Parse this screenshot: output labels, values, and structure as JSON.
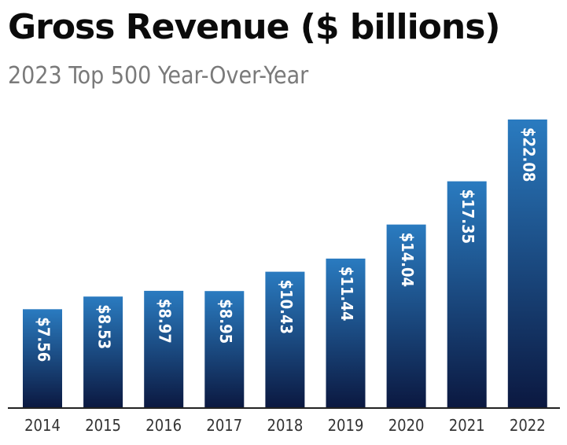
{
  "chart_data": {
    "type": "bar",
    "title": "Gross Revenue ($ billions)",
    "subtitle": "2023 Top 500 Year-Over-Year",
    "categories": [
      "2014",
      "2015",
      "2016",
      "2017",
      "2018",
      "2019",
      "2020",
      "2021",
      "2022"
    ],
    "values": [
      7.56,
      8.53,
      8.97,
      8.95,
      10.43,
      11.44,
      14.04,
      17.35,
      22.08
    ],
    "data_labels": [
      "$7.56",
      "$8.53",
      "$8.97",
      "$8.95",
      "$10.43",
      "$11.44",
      "$14.04",
      "$17.35",
      "$22.08"
    ],
    "xlabel": "",
    "ylabel": "",
    "ylim": [
      0,
      22.08
    ],
    "grid": false,
    "legend": "none",
    "colors": {
      "bar_top": "#2a7bc0",
      "bar_bottom": "#0b1840",
      "baseline": "#222222",
      "title": "#0b0b0b",
      "subtitle": "#7a7a7a"
    }
  }
}
